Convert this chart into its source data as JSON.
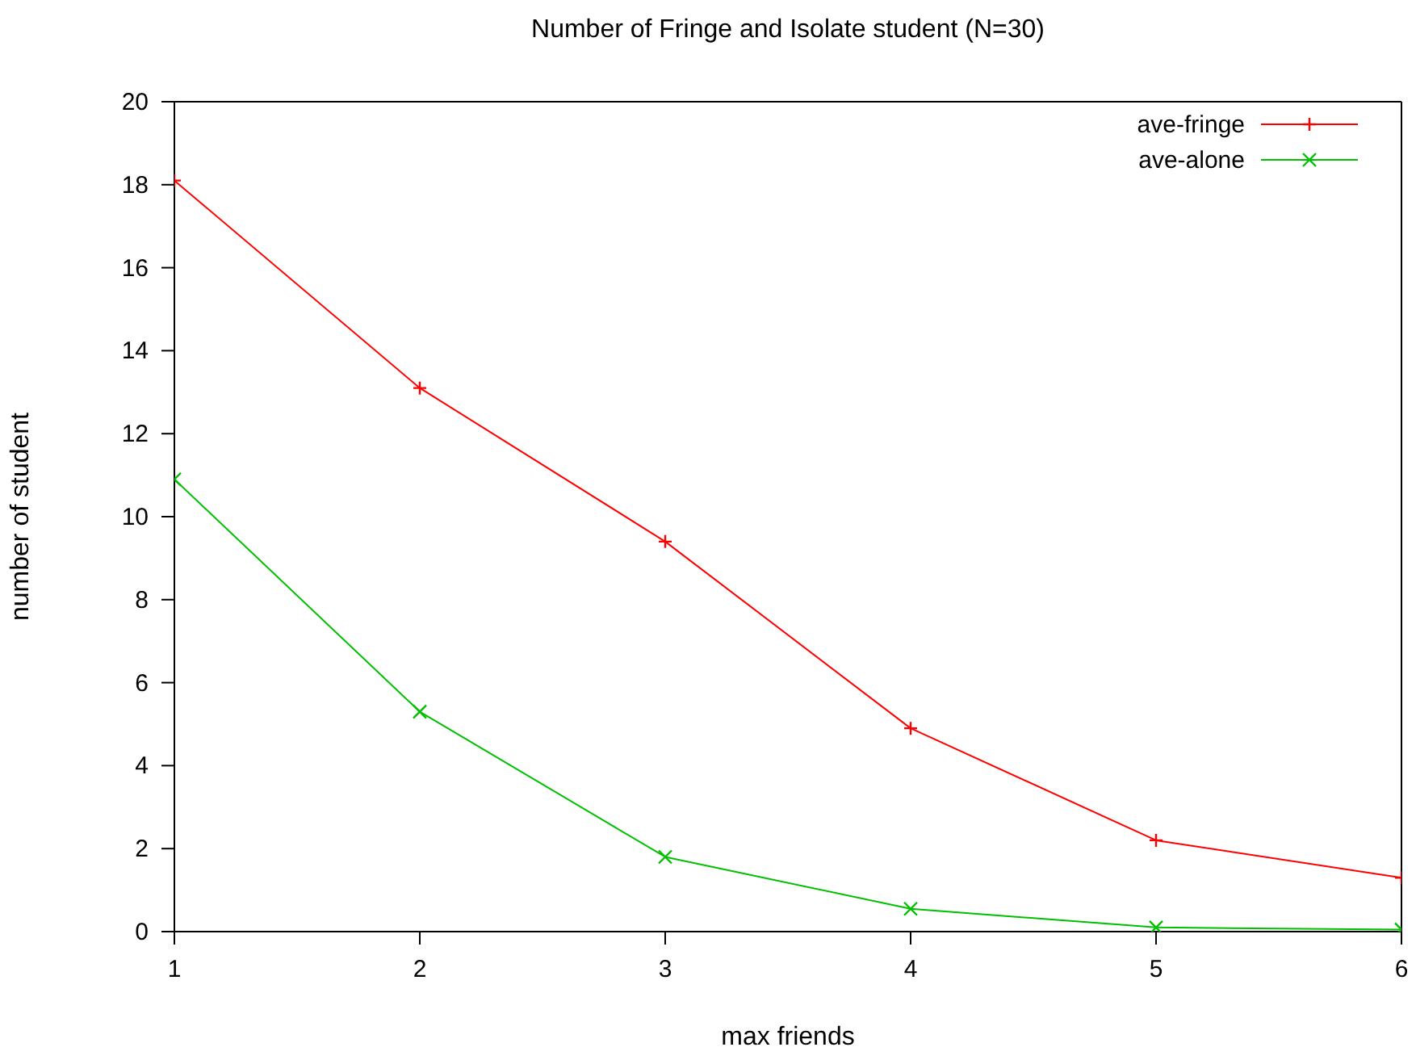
{
  "chart_data": {
    "type": "line",
    "title": "Number of Fringe and Isolate student (N=30)",
    "xlabel": "max friends",
    "ylabel": "number of student",
    "x": [
      1,
      2,
      3,
      4,
      5,
      6
    ],
    "series": [
      {
        "name": "ave-fringe",
        "color": "#ff0000",
        "values": [
          18.1,
          13.1,
          9.4,
          4.9,
          2.2,
          1.3
        ]
      },
      {
        "name": "ave-alone",
        "color": "#00c000",
        "values": [
          10.9,
          5.3,
          1.8,
          0.55,
          0.1,
          0.05
        ]
      }
    ],
    "xlim": [
      1,
      6
    ],
    "xticks": [
      1,
      2,
      3,
      4,
      5,
      6
    ],
    "ylim": [
      0,
      20
    ],
    "yticks": [
      0,
      2,
      4,
      6,
      8,
      10,
      12,
      14,
      16,
      18,
      20
    ],
    "grid": false,
    "legend": "top right",
    "marker": "cross",
    "line_style": "solid"
  }
}
